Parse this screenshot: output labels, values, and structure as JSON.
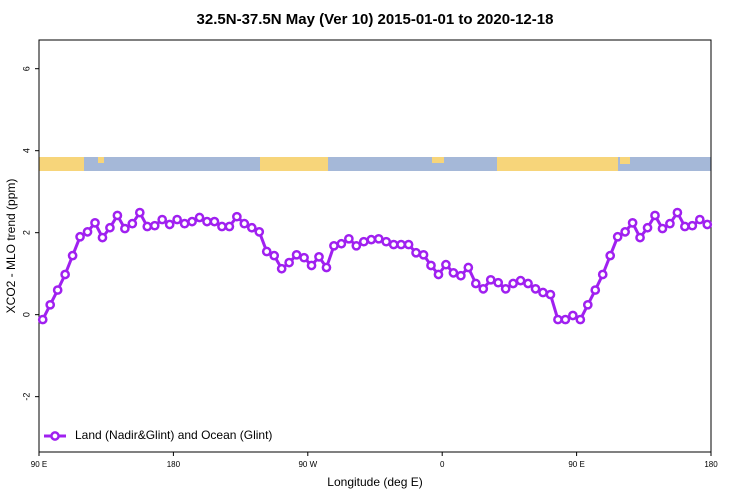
{
  "chart_data": {
    "type": "line",
    "title": "32.5N-37.5N May (Ver 10)   2015-01-01 to 2020-12-18",
    "xlabel": "Longitude (deg E)",
    "ylabel": "XCO2 - MLO trend (ppm)",
    "xlim": [
      90,
      540
    ],
    "ylim": [
      -3.35,
      6.7
    ],
    "xticks": [
      {
        "value": 90,
        "label": "90 E"
      },
      180,
      {
        "value": 270,
        "label": "90 W"
      },
      {
        "value": 360,
        "label": "0"
      },
      {
        "value": 450,
        "label": "90 E"
      },
      {
        "value": 540,
        "label": "180"
      }
    ],
    "yticks": [
      -2,
      0,
      2,
      4,
      6
    ],
    "legend": "bottom-left",
    "x": [
      92.5,
      97.5,
      102.5,
      107.5,
      112.5,
      117.5,
      122.5,
      127.5,
      132.5,
      137.5,
      142.5,
      147.5,
      152.5,
      157.5,
      162.5,
      167.5,
      172.5,
      177.5,
      182.5,
      187.5,
      192.5,
      197.5,
      202.5,
      207.5,
      212.5,
      217.5,
      222.5,
      227.5,
      232.5,
      237.5,
      242.5,
      247.5,
      252.5,
      257.5,
      262.5,
      267.5,
      272.5,
      277.5,
      282.5,
      287.5,
      292.5,
      297.5,
      302.5,
      307.5,
      312.5,
      317.5,
      322.5,
      327.5,
      332.5,
      337.5,
      342.5,
      347.5,
      352.5,
      357.5,
      362.5,
      367.5,
      372.5,
      377.5,
      382.5,
      387.5,
      392.5,
      397.5,
      402.5,
      407.5,
      412.5,
      417.5,
      422.5,
      427.5,
      432.5,
      437.5,
      442.5,
      447.5,
      452.5,
      457.5,
      462.5,
      467.5,
      472.5,
      477.5,
      482.5,
      487.5,
      492.5,
      497.5,
      502.5,
      507.5,
      512.5,
      517.5,
      522.5,
      527.5,
      532.5,
      537.5
    ],
    "series": [
      {
        "name": "Land (Nadir&Glint) and Ocean (Glint)",
        "color": "#a020f0",
        "values": [
          -0.12,
          0.24,
          0.6,
          0.98,
          1.44,
          1.9,
          2.02,
          2.24,
          1.88,
          2.12,
          2.42,
          2.1,
          2.22,
          2.49,
          2.15,
          2.17,
          2.32,
          2.2,
          2.32,
          2.22,
          2.27,
          2.37,
          2.27,
          2.27,
          2.15,
          2.15,
          2.39,
          2.22,
          2.12,
          2.02,
          1.54,
          1.44,
          1.12,
          1.27,
          1.46,
          1.39,
          1.2,
          1.41,
          1.15,
          1.68,
          1.73,
          1.85,
          1.68,
          1.78,
          1.83,
          1.85,
          1.78,
          1.71,
          1.71,
          1.71,
          1.51,
          1.46,
          1.2,
          0.98,
          1.22,
          1.02,
          0.95,
          1.15,
          0.76,
          0.63,
          0.85,
          0.78,
          0.63,
          0.76,
          0.83,
          0.76,
          0.63,
          0.54,
          0.49,
          -0.12,
          -0.12,
          -0.02,
          -0.12,
          0.24,
          0.6,
          0.98,
          1.44,
          1.9,
          2.02,
          2.24,
          1.88,
          2.12,
          2.42,
          2.1,
          2.22,
          2.49,
          2.15,
          2.17,
          2.32,
          2.2
        ]
      }
    ]
  }
}
